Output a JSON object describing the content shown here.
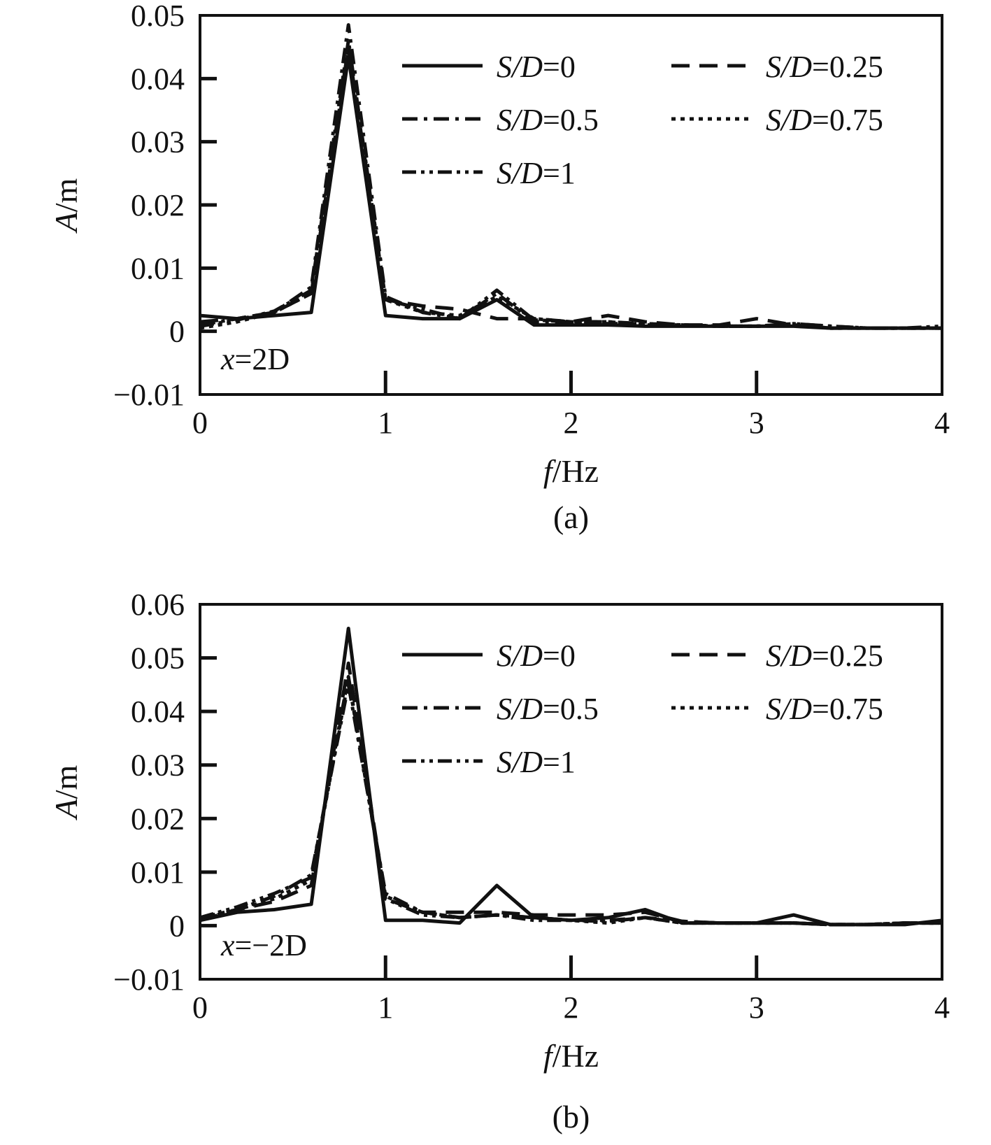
{
  "chart_data": [
    {
      "type": "line",
      "caption": "(a)",
      "annotation": {
        "var": "x",
        "rest": "=2D"
      },
      "xlabel": {
        "var": "f",
        "rest": "/Hz"
      },
      "ylabel": {
        "var": "A",
        "rest": "/m"
      },
      "xlim": [
        0,
        4
      ],
      "ylim": [
        -0.01,
        0.05
      ],
      "xticks": [
        0,
        1,
        2,
        3,
        4
      ],
      "xtick_labels": [
        "0",
        "1",
        "2",
        "3",
        "4"
      ],
      "yticks": [
        -0.01,
        0,
        0.01,
        0.02,
        0.03,
        0.04,
        0.05
      ],
      "ytick_labels": [
        "−0.01",
        "0",
        "0.01",
        "0.02",
        "0.03",
        "0.04",
        "0.05"
      ],
      "legend_placement": "top-right",
      "grid": false,
      "series": [
        {
          "name": "S/D=0",
          "legend": {
            "var": "S/D",
            "rest": "=0"
          },
          "dash": "solid",
          "x": [
            0,
            0.2,
            0.4,
            0.6,
            0.8,
            1.0,
            1.2,
            1.4,
            1.6,
            1.8,
            2.0,
            2.2,
            2.4,
            2.6,
            2.8,
            3.0,
            3.2,
            3.4,
            3.6,
            3.8,
            4.0
          ],
          "y": [
            0.0025,
            0.002,
            0.0025,
            0.003,
            0.0435,
            0.0025,
            0.002,
            0.002,
            0.005,
            0.001,
            0.001,
            0.001,
            0.0008,
            0.0008,
            0.0008,
            0.0008,
            0.0008,
            0.0005,
            0.0005,
            0.0005,
            0.0005
          ]
        },
        {
          "name": "S/D=0.25",
          "legend": {
            "var": "S/D",
            "rest": "=0.25"
          },
          "dash": "long-dash",
          "x": [
            0,
            0.2,
            0.4,
            0.6,
            0.8,
            1.0,
            1.2,
            1.4,
            1.6,
            1.8,
            2.0,
            2.2,
            2.4,
            2.6,
            2.8,
            3.0,
            3.2,
            3.4,
            3.6,
            3.8,
            4.0
          ],
          "y": [
            0.0015,
            0.002,
            0.003,
            0.006,
            0.045,
            0.005,
            0.004,
            0.0035,
            0.002,
            0.002,
            0.0015,
            0.0025,
            0.0015,
            0.001,
            0.001,
            0.002,
            0.001,
            0.0005,
            0.0005,
            0.0005,
            0.0005
          ]
        },
        {
          "name": "S/D=0.5",
          "legend": {
            "var": "S/D",
            "rest": "=0.5"
          },
          "dash": "dash-dot",
          "x": [
            0,
            0.2,
            0.4,
            0.6,
            0.8,
            1.0,
            1.2,
            1.4,
            1.6,
            1.8,
            2.0,
            2.2,
            2.4,
            2.6,
            2.8,
            3.0,
            3.2,
            3.4,
            3.6,
            3.8,
            4.0
          ],
          "y": [
            0.001,
            0.002,
            0.003,
            0.007,
            0.0485,
            0.0055,
            0.003,
            0.002,
            0.006,
            0.0015,
            0.0015,
            0.0015,
            0.0012,
            0.001,
            0.0008,
            0.0008,
            0.0012,
            0.0008,
            0.0005,
            0.0005,
            0.0005
          ]
        },
        {
          "name": "S/D=0.75",
          "legend": {
            "var": "S/D",
            "rest": "=0.75"
          },
          "dash": "dotted",
          "x": [
            0,
            0.2,
            0.4,
            0.6,
            0.8,
            1.0,
            1.2,
            1.4,
            1.6,
            1.8,
            2.0,
            2.2,
            2.4,
            2.6,
            2.8,
            3.0,
            3.2,
            3.4,
            3.6,
            3.8,
            4.0
          ],
          "y": [
            0.0005,
            0.0015,
            0.003,
            0.006,
            0.0445,
            0.005,
            0.003,
            0.0025,
            0.0055,
            0.002,
            0.0015,
            0.0015,
            0.001,
            0.001,
            0.0008,
            0.0008,
            0.001,
            0.0005,
            0.0005,
            0.0005,
            0.0005
          ]
        },
        {
          "name": "S/D=1",
          "legend": {
            "var": "S/D",
            "rest": "=1"
          },
          "dash": "dash-dot-dot",
          "x": [
            0,
            0.2,
            0.4,
            0.6,
            0.8,
            1.0,
            1.2,
            1.4,
            1.6,
            1.8,
            2.0,
            2.2,
            2.4,
            2.6,
            2.8,
            3.0,
            3.2,
            3.4,
            3.6,
            3.8,
            4.0
          ],
          "y": [
            0.0008,
            0.0018,
            0.0032,
            0.0065,
            0.046,
            0.005,
            0.0035,
            0.002,
            0.0065,
            0.0018,
            0.0015,
            0.0012,
            0.0012,
            0.001,
            0.0008,
            0.0008,
            0.0012,
            0.0008,
            0.0005,
            0.0005,
            0.0008
          ]
        }
      ]
    },
    {
      "type": "line",
      "caption": "(b)",
      "annotation": {
        "var": "x",
        "rest": "=−2D"
      },
      "xlabel": {
        "var": "f",
        "rest": "/Hz"
      },
      "ylabel": {
        "var": "A",
        "rest": "/m"
      },
      "xlim": [
        0,
        4
      ],
      "ylim": [
        -0.01,
        0.06
      ],
      "xticks": [
        0,
        1,
        2,
        3,
        4
      ],
      "xtick_labels": [
        "0",
        "1",
        "2",
        "3",
        "4"
      ],
      "yticks": [
        -0.01,
        0,
        0.01,
        0.02,
        0.03,
        0.04,
        0.05,
        0.06
      ],
      "ytick_labels": [
        "−0.01",
        "0",
        "0.01",
        "0.02",
        "0.03",
        "0.04",
        "0.05",
        "0.06"
      ],
      "legend_placement": "top-right",
      "grid": false,
      "series": [
        {
          "name": "S/D=0",
          "legend": {
            "var": "S/D",
            "rest": "=0"
          },
          "dash": "solid",
          "x": [
            0,
            0.2,
            0.4,
            0.6,
            0.8,
            1.0,
            1.2,
            1.4,
            1.6,
            1.8,
            2.0,
            2.2,
            2.4,
            2.6,
            2.8,
            3.0,
            3.2,
            3.4,
            3.6,
            3.8,
            4.0
          ],
          "y": [
            0.001,
            0.0025,
            0.003,
            0.004,
            0.0555,
            0.001,
            0.001,
            0.0005,
            0.0075,
            0.0015,
            0.001,
            0.0015,
            0.003,
            0.0005,
            0.0005,
            0.0005,
            0.002,
            0.0002,
            0.0002,
            0.0002,
            0.001
          ]
        },
        {
          "name": "S/D=0.25",
          "legend": {
            "var": "S/D",
            "rest": "=0.25"
          },
          "dash": "long-dash",
          "x": [
            0,
            0.2,
            0.4,
            0.6,
            0.8,
            1.0,
            1.2,
            1.4,
            1.6,
            1.8,
            2.0,
            2.2,
            2.4,
            2.6,
            2.8,
            3.0,
            3.2,
            3.4,
            3.6,
            3.8,
            4.0
          ],
          "y": [
            0.001,
            0.003,
            0.0045,
            0.0075,
            0.049,
            0.005,
            0.0025,
            0.0025,
            0.0025,
            0.002,
            0.002,
            0.002,
            0.0025,
            0.0008,
            0.0005,
            0.0005,
            0.0005,
            0.0002,
            0.0002,
            0.0005,
            0.0005
          ]
        },
        {
          "name": "S/D=0.5",
          "legend": {
            "var": "S/D",
            "rest": "=0.5"
          },
          "dash": "dash-dot",
          "x": [
            0,
            0.2,
            0.4,
            0.6,
            0.8,
            1.0,
            1.2,
            1.4,
            1.6,
            1.8,
            2.0,
            2.2,
            2.4,
            2.6,
            2.8,
            3.0,
            3.2,
            3.4,
            3.6,
            3.8,
            4.0
          ],
          "y": [
            0.0015,
            0.003,
            0.0055,
            0.0095,
            0.045,
            0.006,
            0.0025,
            0.0015,
            0.002,
            0.0015,
            0.001,
            0.001,
            0.0015,
            0.0008,
            0.0005,
            0.0005,
            0.0005,
            0.0002,
            0.0002,
            0.0005,
            0.0005
          ]
        },
        {
          "name": "S/D=0.75",
          "legend": {
            "var": "S/D",
            "rest": "=0.75"
          },
          "dash": "dotted",
          "x": [
            0,
            0.2,
            0.4,
            0.6,
            0.8,
            1.0,
            1.2,
            1.4,
            1.6,
            1.8,
            2.0,
            2.2,
            2.4,
            2.6,
            2.8,
            3.0,
            3.2,
            3.4,
            3.6,
            3.8,
            4.0
          ],
          "y": [
            0.0012,
            0.003,
            0.005,
            0.0085,
            0.046,
            0.0055,
            0.0025,
            0.0015,
            0.002,
            0.0015,
            0.001,
            0.0005,
            0.0015,
            0.0005,
            0.0005,
            0.0005,
            0.0005,
            0.0002,
            0.0002,
            0.0005,
            0.0005
          ]
        },
        {
          "name": "S/D=1",
          "legend": {
            "var": "S/D",
            "rest": "=1"
          },
          "dash": "dash-dot-dot",
          "x": [
            0,
            0.2,
            0.4,
            0.6,
            0.8,
            1.0,
            1.2,
            1.4,
            1.6,
            1.8,
            2.0,
            2.2,
            2.4,
            2.6,
            2.8,
            3.0,
            3.2,
            3.4,
            3.6,
            3.8,
            4.0
          ],
          "y": [
            0.0015,
            0.0035,
            0.006,
            0.009,
            0.0465,
            0.005,
            0.002,
            0.0015,
            0.002,
            0.001,
            0.001,
            0.0008,
            0.0015,
            0.0005,
            0.0005,
            0.0005,
            0.0005,
            0.0002,
            0.0002,
            0.0005,
            0.0005
          ]
        }
      ]
    }
  ]
}
